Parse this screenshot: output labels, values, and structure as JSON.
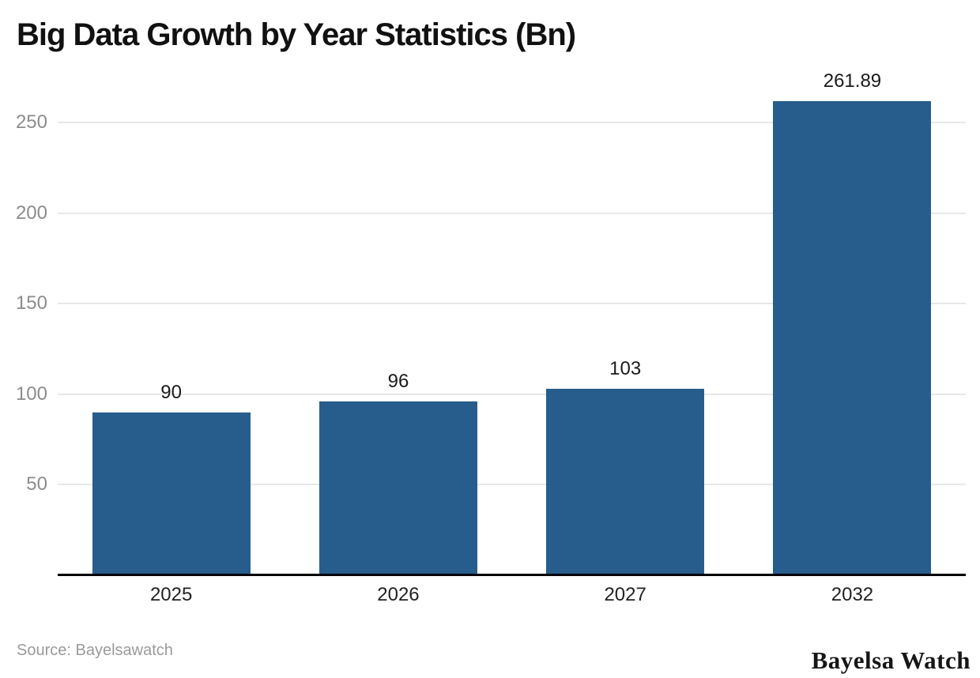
{
  "header": {
    "title": "Big Data Growth by Year Statistics (Bn)"
  },
  "footer": {
    "source_text": "Source: Bayelsawatch",
    "brand_text": "Bayelsa Watch"
  },
  "colors": {
    "bar": "#275d8c",
    "gridline": "#e8e8e8",
    "axis_line": "#000000",
    "y_tick_label": "#8c8c8c",
    "value_label": "#1a1a1a",
    "x_tick_label": "#222222",
    "title": "#111111",
    "source": "#9a9a9a"
  },
  "chart_data": {
    "type": "bar",
    "categories": [
      "2025",
      "2026",
      "2027",
      "2032"
    ],
    "values": [
      90,
      96,
      103,
      261.89
    ],
    "title": "Big Data Growth by Year Statistics (Bn)",
    "xlabel": "",
    "ylabel": "",
    "ylim": [
      0,
      275
    ],
    "yticks": [
      50,
      100,
      150,
      200,
      250
    ],
    "grid": "horizontal",
    "legend": "none",
    "bar_labels_shown": true
  }
}
